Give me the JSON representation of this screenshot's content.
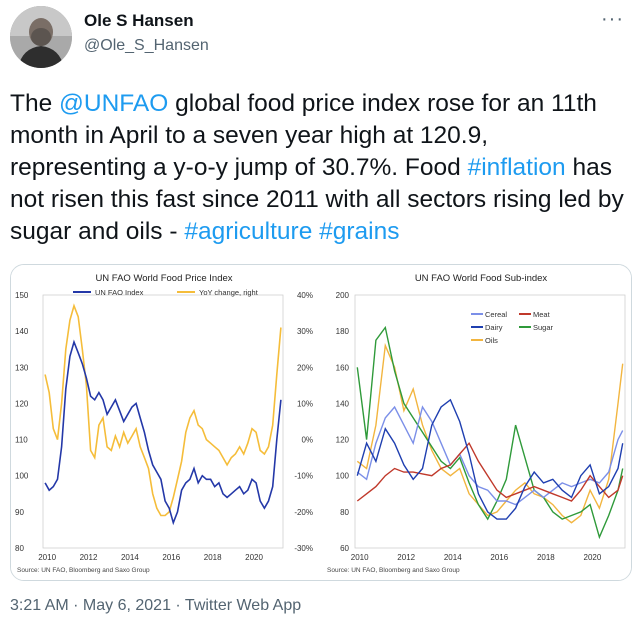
{
  "author": {
    "name": "Ole S Hansen",
    "handle": "@Ole_S_Hansen"
  },
  "more_label": "···",
  "tweet": {
    "t1": "The ",
    "m1": "@UNFAO",
    "t2": " global food price index rose for an 11th month in April to a seven year high at 120.9, representing a y-o-y jump of 30.7%. Food ",
    "h1": "#inflation",
    "t3": " has not risen this fast since 2011 with all sectors rising led by sugar and oils - ",
    "h2": "#agriculture",
    "t4": " ",
    "h3": "#grains"
  },
  "meta": {
    "time": "3:21 AM",
    "sep1": " · ",
    "date": "May 6, 2021",
    "sep2": " · ",
    "client": "Twitter Web App"
  },
  "colors": {
    "link": "#1d9bf0",
    "navy": "#2438a8",
    "gold": "#f5bd3a",
    "cereal": "#7b8fe8",
    "meat": "#c0392b",
    "sugar": "#2f9a3a",
    "dairy": "#1f3fb0",
    "oils": "#f2b53f"
  },
  "chart_data": [
    {
      "type": "line",
      "title": "UN FAO World Food Price Index",
      "source": "Source: UN FAO, Bloomberg and Saxo Group",
      "x_ticks": [
        "2010",
        "2012",
        "2014",
        "2016",
        "2018",
        "2020"
      ],
      "xlim": [
        2009.8,
        2021.4
      ],
      "y_ticks_left": [
        "150",
        "140",
        "130",
        "120",
        "110",
        "100",
        "90",
        "80"
      ],
      "ylim_left": [
        80,
        150
      ],
      "y_ticks_right": [
        "40%",
        "30%",
        "20%",
        "10%",
        "0%",
        "-10%",
        "-20%",
        "-30%"
      ],
      "ylim_right": [
        -30,
        40
      ],
      "grid": false,
      "legend_position": "top",
      "series": [
        {
          "name": "UN FAO Index",
          "axis": "left",
          "x": [
            2009.9,
            2010.1,
            2010.3,
            2010.5,
            2010.7,
            2010.9,
            2011.1,
            2011.3,
            2011.5,
            2011.7,
            2011.9,
            2012.1,
            2012.3,
            2012.5,
            2012.7,
            2012.9,
            2013.1,
            2013.3,
            2013.5,
            2013.7,
            2013.9,
            2014.1,
            2014.3,
            2014.5,
            2014.7,
            2014.9,
            2015.1,
            2015.3,
            2015.5,
            2015.7,
            2015.9,
            2016.1,
            2016.3,
            2016.5,
            2016.7,
            2016.9,
            2017.1,
            2017.3,
            2017.5,
            2017.7,
            2017.9,
            2018.1,
            2018.3,
            2018.5,
            2018.7,
            2018.9,
            2019.1,
            2019.3,
            2019.5,
            2019.7,
            2019.9,
            2020.1,
            2020.3,
            2020.5,
            2020.7,
            2020.9,
            2021.1,
            2021.3
          ],
          "values": [
            98,
            96,
            97,
            99,
            108,
            124,
            133,
            137,
            134,
            131,
            127,
            122,
            121,
            123,
            121,
            117,
            119,
            121,
            118,
            115,
            117,
            119,
            120,
            116,
            112,
            107,
            103,
            101,
            99,
            93,
            91,
            87,
            90,
            96,
            98,
            99,
            102,
            98,
            100,
            99,
            99,
            97,
            98,
            95,
            94,
            95,
            96,
            97,
            95,
            96,
            99,
            98,
            93,
            91,
            93,
            97,
            110,
            121
          ]
        },
        {
          "name": "YoY change, right",
          "axis": "right",
          "x": [
            2009.9,
            2010.1,
            2010.3,
            2010.5,
            2010.7,
            2010.9,
            2011.1,
            2011.3,
            2011.5,
            2011.7,
            2011.9,
            2012.1,
            2012.3,
            2012.5,
            2012.7,
            2012.9,
            2013.1,
            2013.3,
            2013.5,
            2013.7,
            2013.9,
            2014.1,
            2014.3,
            2014.5,
            2014.7,
            2014.9,
            2015.1,
            2015.3,
            2015.5,
            2015.7,
            2015.9,
            2016.1,
            2016.3,
            2016.5,
            2016.7,
            2016.9,
            2017.1,
            2017.3,
            2017.5,
            2017.7,
            2017.9,
            2018.1,
            2018.3,
            2018.5,
            2018.7,
            2018.9,
            2019.1,
            2019.3,
            2019.5,
            2019.7,
            2019.9,
            2020.1,
            2020.3,
            2020.5,
            2020.7,
            2020.9,
            2021.1,
            2021.3
          ],
          "values": [
            18,
            13,
            3,
            0,
            10,
            25,
            33,
            37,
            34,
            25,
            15,
            -3,
            -5,
            4,
            6,
            -2,
            -3,
            1,
            -2,
            2,
            -1,
            1,
            3,
            -2,
            -5,
            -8,
            -15,
            -19,
            -21,
            -21,
            -20,
            -16,
            -11,
            -6,
            2,
            6,
            8,
            4,
            3,
            0,
            -1,
            -2,
            -3,
            -5,
            -7,
            -5,
            -4,
            -2,
            -4,
            -1,
            3,
            2,
            -3,
            -4,
            -2,
            4,
            18,
            31
          ]
        }
      ]
    },
    {
      "type": "line",
      "title": "UN FAO World Food Sub-index",
      "source": "Source: UN FAO, Bloomberg and Saxo Group",
      "x_ticks": [
        "2010",
        "2012",
        "2014",
        "2016",
        "2018",
        "2020"
      ],
      "xlim": [
        2009.8,
        2021.4
      ],
      "y_ticks": [
        "200",
        "180",
        "160",
        "140",
        "120",
        "100",
        "80",
        "60"
      ],
      "ylim": [
        60,
        200
      ],
      "grid": false,
      "legend_position": "top-left",
      "series": [
        {
          "name": "Cereal",
          "x": [
            2009.9,
            2010.3,
            2010.7,
            2011.1,
            2011.5,
            2011.9,
            2012.3,
            2012.7,
            2013.1,
            2013.5,
            2013.9,
            2014.3,
            2014.7,
            2015.1,
            2015.5,
            2015.9,
            2016.3,
            2016.7,
            2017.1,
            2017.5,
            2017.9,
            2018.3,
            2018.7,
            2019.1,
            2019.5,
            2019.9,
            2020.3,
            2020.7,
            2021.1,
            2021.3
          ],
          "values": [
            102,
            98,
            118,
            132,
            138,
            128,
            118,
            138,
            130,
            118,
            106,
            112,
            100,
            94,
            92,
            86,
            86,
            84,
            88,
            92,
            88,
            92,
            96,
            94,
            96,
            98,
            96,
            102,
            120,
            125
          ]
        },
        {
          "name": "Meat",
          "x": [
            2009.9,
            2010.3,
            2010.7,
            2011.1,
            2011.5,
            2011.9,
            2012.3,
            2012.7,
            2013.1,
            2013.5,
            2013.9,
            2014.3,
            2014.7,
            2015.1,
            2015.5,
            2015.9,
            2016.3,
            2016.7,
            2017.1,
            2017.5,
            2017.9,
            2018.3,
            2018.7,
            2019.1,
            2019.5,
            2019.9,
            2020.3,
            2020.7,
            2021.1,
            2021.3
          ],
          "values": [
            86,
            90,
            94,
            100,
            104,
            102,
            102,
            101,
            100,
            104,
            106,
            112,
            118,
            108,
            100,
            92,
            88,
            90,
            92,
            94,
            92,
            90,
            88,
            86,
            92,
            100,
            94,
            88,
            92,
            100
          ]
        },
        {
          "name": "Dairy",
          "x": [
            2009.9,
            2010.3,
            2010.7,
            2011.1,
            2011.5,
            2011.9,
            2012.3,
            2012.7,
            2013.1,
            2013.5,
            2013.9,
            2014.3,
            2014.7,
            2015.1,
            2015.5,
            2015.9,
            2016.3,
            2016.7,
            2017.1,
            2017.5,
            2017.9,
            2018.3,
            2018.7,
            2019.1,
            2019.5,
            2019.9,
            2020.3,
            2020.7,
            2021.1,
            2021.3
          ],
          "values": [
            100,
            118,
            108,
            126,
            118,
            106,
            98,
            104,
            128,
            138,
            142,
            130,
            112,
            90,
            80,
            76,
            76,
            82,
            94,
            102,
            96,
            98,
            92,
            88,
            100,
            106,
            90,
            94,
            104,
            118
          ]
        },
        {
          "name": "Sugar",
          "x": [
            2009.9,
            2010.3,
            2010.7,
            2011.1,
            2011.5,
            2011.9,
            2012.3,
            2012.7,
            2013.1,
            2013.5,
            2013.9,
            2014.3,
            2014.7,
            2015.1,
            2015.5,
            2015.9,
            2016.3,
            2016.7,
            2017.1,
            2017.5,
            2017.9,
            2018.3,
            2018.7,
            2019.1,
            2019.5,
            2019.9,
            2020.3,
            2020.7,
            2021.1,
            2021.3
          ],
          "values": [
            160,
            120,
            175,
            182,
            158,
            140,
            132,
            124,
            116,
            108,
            104,
            110,
            96,
            84,
            76,
            86,
            98,
            128,
            110,
            92,
            88,
            80,
            76,
            78,
            80,
            84,
            66,
            78,
            92,
            104
          ]
        },
        {
          "name": "Oils",
          "x": [
            2009.9,
            2010.3,
            2010.7,
            2011.1,
            2011.5,
            2011.9,
            2012.3,
            2012.7,
            2013.1,
            2013.5,
            2013.9,
            2014.3,
            2014.7,
            2015.1,
            2015.5,
            2015.9,
            2016.3,
            2016.7,
            2017.1,
            2017.5,
            2017.9,
            2018.3,
            2018.7,
            2019.1,
            2019.5,
            2019.9,
            2020.3,
            2020.7,
            2021.1,
            2021.3
          ],
          "values": [
            108,
            104,
            128,
            172,
            160,
            136,
            148,
            128,
            114,
            104,
            100,
            104,
            90,
            84,
            78,
            80,
            86,
            92,
            96,
            90,
            88,
            84,
            78,
            74,
            78,
            92,
            82,
            98,
            140,
            162
          ]
        }
      ]
    }
  ]
}
